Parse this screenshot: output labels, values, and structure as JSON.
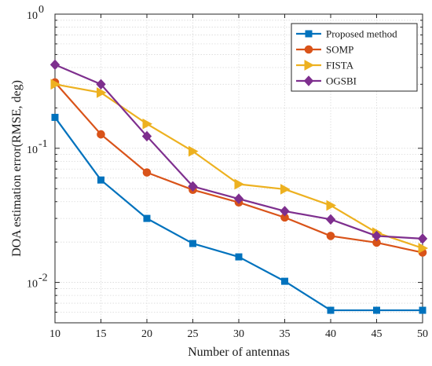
{
  "chart_data": {
    "type": "line",
    "xlabel": "Number of antennas",
    "ylabel": "DOA estimation error(RMSE, deg)",
    "x": [
      10,
      15,
      20,
      25,
      30,
      35,
      40,
      45,
      50
    ],
    "xlim": [
      10,
      50
    ],
    "xticks": [
      "10",
      "15",
      "20",
      "25",
      "30",
      "35",
      "40",
      "45",
      "50"
    ],
    "ylim": [
      0.005,
      1
    ],
    "yscale": "log",
    "yticks": [
      {
        "value": 0.01,
        "base": "10",
        "exp": "-2"
      },
      {
        "value": 0.1,
        "base": "10",
        "exp": "-1"
      },
      {
        "value": 1,
        "base": "10",
        "exp": "0"
      }
    ],
    "grid": true,
    "legend_position": "top-right",
    "series": [
      {
        "name": "Proposed method",
        "color": "#0072BD",
        "marker": "square",
        "values": [
          0.17,
          0.058,
          0.03,
          0.0195,
          0.0155,
          0.0102,
          0.0062,
          0.0062,
          0.0062
        ]
      },
      {
        "name": "SOMP",
        "color": "#D95319",
        "marker": "circle",
        "values": [
          0.31,
          0.127,
          0.066,
          0.049,
          0.0395,
          0.0305,
          0.0222,
          0.0198,
          0.0167
        ]
      },
      {
        "name": "FISTA",
        "color": "#EDB120",
        "marker": "triangle-right",
        "values": [
          0.3,
          0.26,
          0.152,
          0.095,
          0.054,
          0.0495,
          0.0375,
          0.0235,
          0.018
        ]
      },
      {
        "name": "OGSBI",
        "color": "#7E2F8E",
        "marker": "diamond",
        "values": [
          0.42,
          0.3,
          0.123,
          0.052,
          0.042,
          0.034,
          0.0295,
          0.0222,
          0.0212
        ]
      }
    ]
  }
}
